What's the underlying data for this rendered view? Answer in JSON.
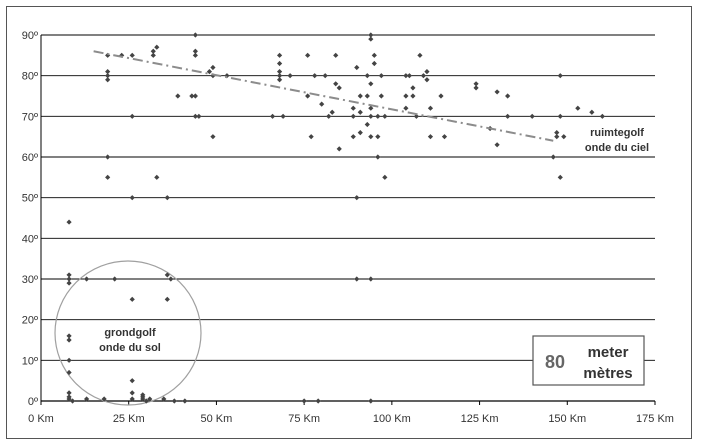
{
  "chart_data": {
    "type": "scatter",
    "title": "",
    "xlabel": "",
    "ylabel": "",
    "xlim": [
      0,
      175
    ],
    "ylim": [
      0,
      90
    ],
    "x_ticks": [
      "0 Km",
      "25 Km",
      "50 Km",
      "75 Km",
      "100 Km",
      "125 Km",
      "150 Km",
      "175 Km"
    ],
    "y_ticks": [
      "0º",
      "10º",
      "20º",
      "30º",
      "40º",
      "50º",
      "60º",
      "70º",
      "80º",
      "90º"
    ],
    "grid": "horizontal",
    "series": [
      {
        "points": [
          [
            8,
            44
          ],
          [
            8,
            31
          ],
          [
            8,
            30
          ],
          [
            8,
            29
          ],
          [
            8,
            16
          ],
          [
            8,
            15
          ],
          [
            8,
            10
          ],
          [
            8,
            7
          ],
          [
            8,
            2
          ],
          [
            8,
            1
          ],
          [
            8,
            0.5
          ],
          [
            9,
            0
          ],
          [
            13,
            30
          ],
          [
            13,
            0.5
          ],
          [
            18,
            0.5
          ],
          [
            19,
            85
          ],
          [
            19,
            81
          ],
          [
            19,
            80
          ],
          [
            19,
            79
          ],
          [
            19,
            60
          ],
          [
            19,
            55
          ],
          [
            21,
            30
          ],
          [
            23,
            85
          ],
          [
            26,
            85
          ],
          [
            26,
            70
          ],
          [
            26,
            50
          ],
          [
            26,
            25
          ],
          [
            26,
            5
          ],
          [
            26,
            2
          ],
          [
            26,
            0.5
          ],
          [
            29,
            1.5
          ],
          [
            29,
            1
          ],
          [
            29,
            0.5
          ],
          [
            30,
            0
          ],
          [
            31,
            0.5
          ],
          [
            32,
            85
          ],
          [
            32,
            86
          ],
          [
            33,
            87
          ],
          [
            33,
            55
          ],
          [
            35,
            0.5
          ],
          [
            36,
            25
          ],
          [
            36,
            31
          ],
          [
            36,
            50
          ],
          [
            37,
            30
          ],
          [
            38,
            0
          ],
          [
            39,
            75
          ],
          [
            41,
            0
          ],
          [
            43,
            75
          ],
          [
            44,
            90
          ],
          [
            44,
            86
          ],
          [
            44,
            85
          ],
          [
            44,
            70
          ],
          [
            44,
            75
          ],
          [
            45,
            70
          ],
          [
            48,
            81
          ],
          [
            49,
            82
          ],
          [
            49,
            80
          ],
          [
            49,
            65
          ],
          [
            53,
            80
          ],
          [
            66,
            70
          ],
          [
            68,
            85
          ],
          [
            68,
            83
          ],
          [
            68,
            81
          ],
          [
            68,
            80
          ],
          [
            68,
            79
          ],
          [
            69,
            70
          ],
          [
            71,
            80
          ],
          [
            75,
            0
          ],
          [
            76,
            85
          ],
          [
            76,
            75
          ],
          [
            77,
            65
          ],
          [
            78,
            80
          ],
          [
            79,
            0
          ],
          [
            80,
            73
          ],
          [
            81,
            80
          ],
          [
            82,
            70
          ],
          [
            83,
            71
          ],
          [
            84,
            85
          ],
          [
            84,
            78
          ],
          [
            85,
            62
          ],
          [
            85,
            77
          ],
          [
            89,
            70
          ],
          [
            89,
            72
          ],
          [
            89,
            65
          ],
          [
            90,
            82
          ],
          [
            90,
            50
          ],
          [
            90,
            30
          ],
          [
            91,
            75
          ],
          [
            91,
            71
          ],
          [
            91,
            66
          ],
          [
            93,
            75
          ],
          [
            93,
            68
          ],
          [
            93,
            80
          ],
          [
            94,
            90
          ],
          [
            94,
            89
          ],
          [
            94,
            78
          ],
          [
            94,
            72
          ],
          [
            94,
            70
          ],
          [
            94,
            65
          ],
          [
            94,
            30
          ],
          [
            94,
            0
          ],
          [
            95,
            85
          ],
          [
            95,
            83
          ],
          [
            96,
            70
          ],
          [
            96,
            65
          ],
          [
            96,
            60
          ],
          [
            97,
            75
          ],
          [
            97,
            80
          ],
          [
            98,
            55
          ],
          [
            98,
            70
          ],
          [
            104,
            75
          ],
          [
            104,
            80
          ],
          [
            104,
            72
          ],
          [
            105,
            80
          ],
          [
            106,
            75
          ],
          [
            106,
            77
          ],
          [
            107,
            70
          ],
          [
            108,
            85
          ],
          [
            109,
            80
          ],
          [
            110,
            79
          ],
          [
            110,
            81
          ],
          [
            111,
            72
          ],
          [
            111,
            65
          ],
          [
            114,
            75
          ],
          [
            115,
            65
          ],
          [
            124,
            77
          ],
          [
            124,
            78
          ],
          [
            128,
            67
          ],
          [
            130,
            63
          ],
          [
            130,
            76
          ],
          [
            133,
            75
          ],
          [
            133,
            70
          ],
          [
            140,
            70
          ],
          [
            146,
            60
          ],
          [
            147,
            66
          ],
          [
            147,
            65
          ],
          [
            148,
            80
          ],
          [
            148,
            70
          ],
          [
            148,
            55
          ],
          [
            149,
            65
          ],
          [
            153,
            72
          ],
          [
            157,
            71
          ],
          [
            160,
            70
          ]
        ]
      }
    ],
    "trendline": {
      "style": "dash-dot",
      "from": [
        15,
        86
      ],
      "to": [
        146,
        64
      ]
    },
    "annotations": {
      "sky_wave": [
        "ruimtegolf",
        "onde du ciel"
      ],
      "ground_wave": [
        "grondgolf",
        "onde du sol"
      ],
      "box_number": "80",
      "box_unit": [
        "meter",
        "mètres"
      ]
    }
  },
  "colors": {
    "points": "#444444",
    "trendline": "#8c8c8c",
    "gridline": "#000000",
    "ellipse": "#a0a0a0",
    "text": "#333333",
    "box_number": "#666666"
  }
}
